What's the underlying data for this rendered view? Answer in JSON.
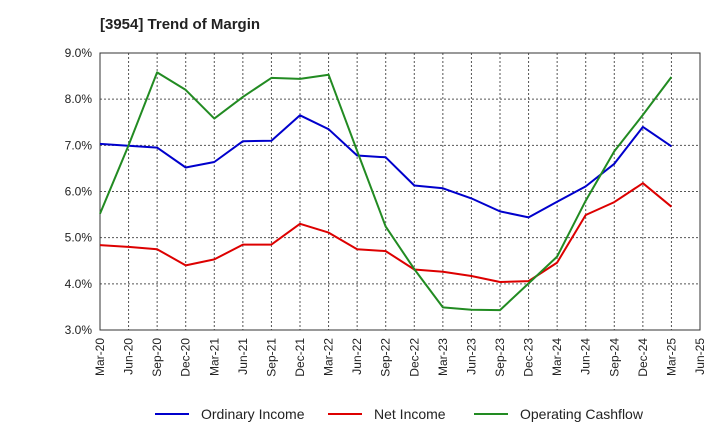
{
  "chart_data": {
    "type": "line",
    "title": "[3954]  Trend of Margin",
    "x": [
      "Mar-20",
      "Jun-20",
      "Sep-20",
      "Dec-20",
      "Mar-21",
      "Jun-21",
      "Sep-21",
      "Dec-21",
      "Mar-22",
      "Jun-22",
      "Sep-22",
      "Dec-22",
      "Mar-23",
      "Jun-23",
      "Sep-23",
      "Dec-23",
      "Mar-24",
      "Jun-24",
      "Sep-24",
      "Dec-24",
      "Mar-25",
      "Jun-25"
    ],
    "ylim": [
      3.0,
      9.0
    ],
    "yticks": [
      "3.0%",
      "4.0%",
      "5.0%",
      "6.0%",
      "7.0%",
      "8.0%",
      "9.0%"
    ],
    "yticks_values": [
      3,
      4,
      5,
      6,
      7,
      8,
      9
    ],
    "grid": true,
    "legend_position": "bottom",
    "series": [
      {
        "name": "Ordinary Income",
        "color": "#0000cc",
        "values": [
          7.03,
          6.99,
          6.95,
          6.52,
          6.64,
          7.09,
          7.1,
          7.65,
          7.35,
          6.78,
          6.74,
          6.13,
          6.07,
          5.85,
          5.57,
          5.44,
          5.78,
          6.11,
          6.6,
          7.4,
          6.98,
          null
        ]
      },
      {
        "name": "Net Income",
        "color": "#dd0000",
        "values": [
          4.84,
          4.8,
          4.75,
          4.4,
          4.53,
          4.85,
          4.85,
          5.3,
          5.11,
          4.75,
          4.71,
          4.31,
          4.26,
          4.17,
          4.04,
          4.06,
          4.46,
          5.49,
          5.77,
          6.18,
          5.67,
          null
        ]
      },
      {
        "name": "Operating Cashflow",
        "color": "#228b22",
        "values": [
          5.52,
          7.0,
          8.58,
          8.2,
          7.58,
          8.05,
          8.46,
          8.44,
          8.53,
          6.88,
          5.24,
          4.32,
          3.49,
          3.44,
          3.43,
          4.01,
          4.59,
          5.8,
          6.87,
          7.66,
          8.48,
          null
        ]
      }
    ]
  }
}
